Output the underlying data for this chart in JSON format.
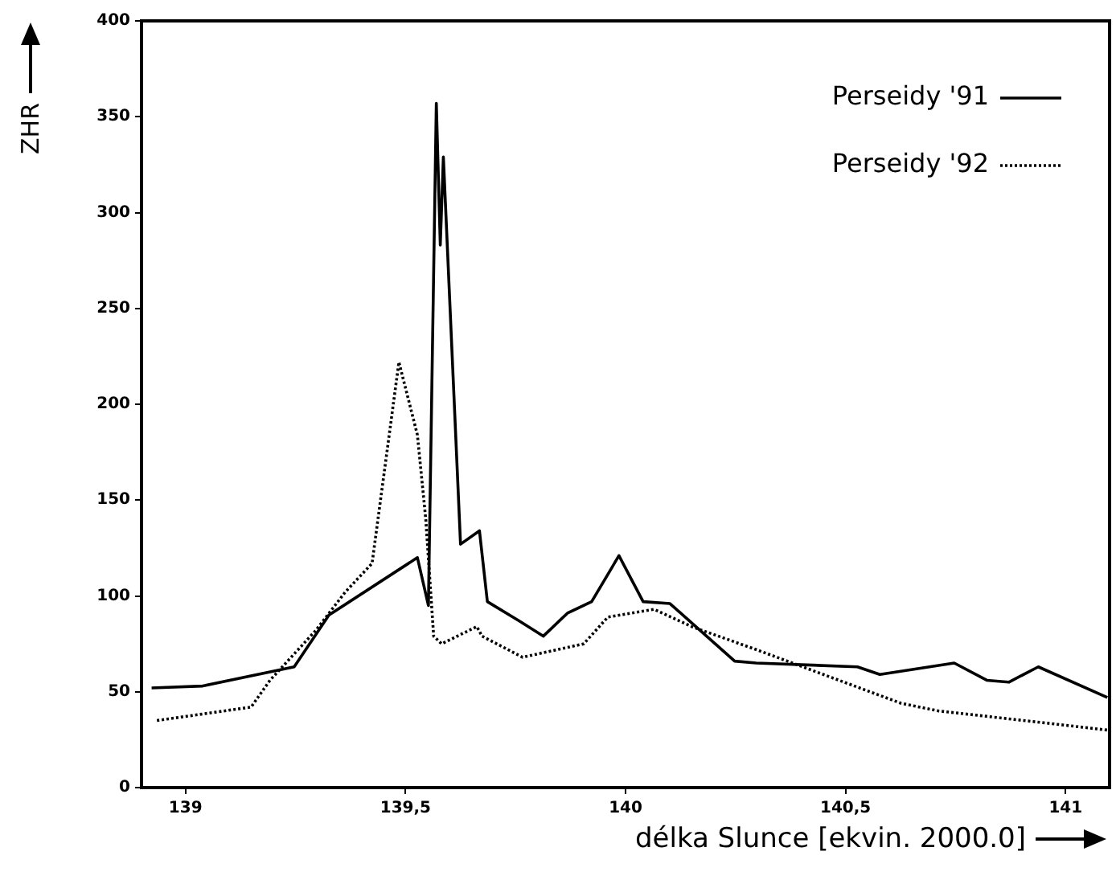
{
  "chart_data": {
    "type": "line",
    "xlabel": "délka Slunce [ekvin. 2000.0]",
    "ylabel": "ZHR",
    "xlim": [
      138.9,
      141.1
    ],
    "xticks": [
      139,
      {
        "value": 139.5,
        "label": "139,5"
      },
      140,
      {
        "value": 140.5,
        "label": "140,5"
      },
      141
    ],
    "ylim": [
      0,
      400
    ],
    "yticks": [
      0,
      50,
      100,
      150,
      200,
      250,
      300,
      350,
      400
    ],
    "grid": false,
    "legend": "top right",
    "marker": "none",
    "series": [
      {
        "name": "Perseidy '91",
        "color": "#000000",
        "line_style": "solid",
        "x": [
          138.923,
          139.039,
          139.247,
          139.326,
          139.527,
          139.552,
          139.57,
          139.579,
          139.586,
          139.625,
          139.668,
          139.686,
          139.758,
          139.813,
          139.868,
          139.923,
          139.985,
          140.04,
          140.101,
          140.248,
          140.297,
          140.527,
          140.578,
          140.747,
          140.821,
          140.871,
          140.938,
          141.095
        ],
        "values": [
          52,
          53,
          63,
          90,
          120,
          95,
          357,
          283,
          329,
          127,
          134,
          97,
          87,
          79,
          91,
          97,
          121,
          97,
          96,
          66,
          65,
          63,
          59,
          65,
          56,
          55,
          63,
          47
        ]
      },
      {
        "name": "Perseidy '92",
        "color": "#000000",
        "line_style": "dotted",
        "x": [
          138.935,
          139.149,
          139.192,
          139.296,
          139.363,
          139.424,
          139.485,
          139.527,
          139.546,
          139.564,
          139.582,
          139.662,
          139.674,
          139.766,
          139.905,
          139.96,
          140.065,
          140.15,
          140.297,
          140.626,
          140.711,
          140.944,
          141.095
        ],
        "values": [
          35,
          42,
          56,
          82,
          102,
          117,
          222,
          184,
          140,
          79,
          75,
          84,
          79,
          68,
          75,
          89,
          93,
          84,
          72,
          44,
          40,
          34,
          30
        ]
      }
    ]
  }
}
